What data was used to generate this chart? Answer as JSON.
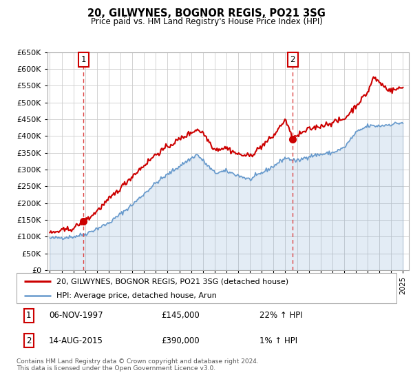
{
  "title": "20, GILWYNES, BOGNOR REGIS, PO21 3SG",
  "subtitle": "Price paid vs. HM Land Registry's House Price Index (HPI)",
  "background_color": "#ffffff",
  "plot_bg_color": "#ffffff",
  "grid_color": "#cccccc",
  "sale1_date": 1997.85,
  "sale1_price": 145000,
  "sale2_date": 2015.62,
  "sale2_price": 390000,
  "legend_label1": "20, GILWYNES, BOGNOR REGIS, PO21 3SG (detached house)",
  "legend_label2": "HPI: Average price, detached house, Arun",
  "table_row1": [
    "1",
    "06-NOV-1997",
    "£145,000",
    "22% ↑ HPI"
  ],
  "table_row2": [
    "2",
    "14-AUG-2015",
    "£390,000",
    "1% ↑ HPI"
  ],
  "footer": "Contains HM Land Registry data © Crown copyright and database right 2024.\nThis data is licensed under the Open Government Licence v3.0.",
  "line1_color": "#cc0000",
  "line2_color": "#6699cc",
  "vline_color": "#dd4444",
  "marker_color": "#cc0000",
  "ylim_max": 650000,
  "xlim_start": 1994.8,
  "xlim_end": 2025.5,
  "hpi_xp": [
    1995,
    1997,
    1998,
    2000,
    2002,
    2004,
    2006,
    2007.5,
    2009,
    2010,
    2012,
    2014,
    2015,
    2016,
    2017,
    2018,
    2019,
    2020,
    2021,
    2022,
    2023,
    2024,
    2025
  ],
  "hpi_fp": [
    95000,
    100000,
    108000,
    140000,
    195000,
    260000,
    310000,
    345000,
    290000,
    295000,
    270000,
    310000,
    335000,
    325000,
    340000,
    345000,
    350000,
    365000,
    410000,
    430000,
    430000,
    435000,
    440000
  ],
  "prop_xp": [
    1995,
    1997,
    1997.85,
    1998.5,
    2000,
    2002,
    2004,
    2006,
    2007.5,
    2008,
    2009,
    2010,
    2011,
    2012,
    2013,
    2014,
    2015,
    2015.62,
    2016,
    2017,
    2018,
    2019,
    2020,
    2021,
    2022,
    2022.5,
    2023,
    2023.5,
    2024,
    2025
  ],
  "prop_fp": [
    110000,
    125000,
    145000,
    160000,
    210000,
    280000,
    345000,
    390000,
    420000,
    410000,
    360000,
    365000,
    345000,
    340000,
    370000,
    400000,
    450000,
    390000,
    400000,
    420000,
    430000,
    440000,
    450000,
    490000,
    530000,
    575000,
    560000,
    545000,
    535000,
    545000
  ]
}
